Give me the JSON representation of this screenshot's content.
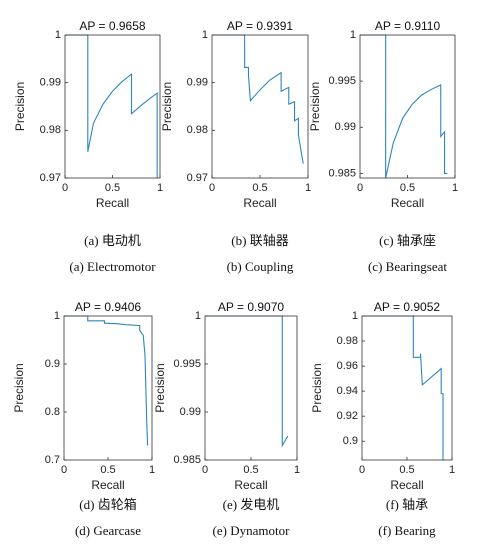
{
  "chart_data": [
    {
      "type": "line",
      "title": "AP = 0.9658",
      "xlabel": "Recall",
      "ylabel": "Precision",
      "caption_cn": "(a)  电动机",
      "caption_en": "(a) Electromotor",
      "color": "#2f86b8",
      "x": [
        0,
        0.24,
        0.24,
        0.3,
        0.4,
        0.5,
        0.6,
        0.7,
        0.7,
        0.8,
        0.9,
        0.97,
        0.97
      ],
      "values": [
        1,
        1,
        0.9755,
        0.9815,
        0.9855,
        0.9882,
        0.9902,
        0.9918,
        0.9835,
        0.9852,
        0.9868,
        0.9878,
        0.97
      ],
      "xlim": [
        0,
        1
      ],
      "ylim": [
        0.97,
        1
      ],
      "xticks": [
        0,
        0.5,
        1
      ],
      "yticks": [
        0.97,
        0.98,
        0.99,
        1
      ]
    },
    {
      "type": "line",
      "title": "AP = 0.9391",
      "xlabel": "Recall",
      "ylabel": "Precision",
      "caption_cn": "(b)  联轴器",
      "caption_en": "(b) Coupling",
      "color": "#2f86b8",
      "x": [
        0,
        0.34,
        0.34,
        0.38,
        0.38,
        0.4,
        0.5,
        0.6,
        0.72,
        0.72,
        0.8,
        0.8,
        0.86,
        0.86,
        0.9,
        0.9,
        0.95
      ],
      "values": [
        1,
        1,
        0.9932,
        0.9932,
        0.9915,
        0.9862,
        0.9885,
        0.9905,
        0.9921,
        0.9882,
        0.989,
        0.9855,
        0.986,
        0.982,
        0.9825,
        0.979,
        0.973
      ],
      "xlim": [
        0,
        1
      ],
      "ylim": [
        0.97,
        1
      ],
      "xticks": [
        0,
        0.5,
        1
      ],
      "yticks": [
        0.97,
        0.98,
        0.99,
        1
      ]
    },
    {
      "type": "line",
      "title": "AP = 0.9110",
      "xlabel": "Recall",
      "ylabel": "Precision",
      "caption_cn": "(c)  轴承座",
      "caption_en": "(c) Bearingseat",
      "color": "#2f86b8",
      "x": [
        0,
        0.27,
        0.27,
        0.35,
        0.45,
        0.55,
        0.65,
        0.75,
        0.85,
        0.85,
        0.89,
        0.89,
        0.92
      ],
      "values": [
        1,
        1,
        0.9845,
        0.9883,
        0.991,
        0.9925,
        0.9935,
        0.9941,
        0.9946,
        0.989,
        0.9895,
        0.985,
        0.985
      ],
      "xlim": [
        0,
        1
      ],
      "ylim": [
        0.9845,
        1
      ],
      "xticks": [
        0,
        0.5,
        1
      ],
      "yticks": [
        0.985,
        0.99,
        0.995,
        1
      ]
    },
    {
      "type": "line",
      "title": "AP = 0.9406",
      "xlabel": "Recall",
      "ylabel": "Precision",
      "caption_cn": "(d)  齿轮箱",
      "caption_en": "(d) Gearcase",
      "color": "#2f86b8",
      "x": [
        0,
        0.27,
        0.27,
        0.46,
        0.46,
        0.6,
        0.7,
        0.86,
        0.86,
        0.9,
        0.92,
        0.93,
        0.94,
        0.95
      ],
      "values": [
        1,
        1,
        0.99,
        0.99,
        0.985,
        0.984,
        0.982,
        0.98,
        0.97,
        0.96,
        0.92,
        0.85,
        0.78,
        0.73
      ],
      "xlim": [
        0,
        1
      ],
      "ylim": [
        0.7,
        1
      ],
      "xticks": [
        0,
        0.5,
        1
      ],
      "yticks": [
        0.7,
        0.8,
        0.9,
        1
      ]
    },
    {
      "type": "line",
      "title": "AP = 0.9070",
      "xlabel": "Recall",
      "ylabel": "Precision",
      "caption_cn": "(e)  发电机",
      "caption_en": "(e) Dynamotor",
      "color": "#2f86b8",
      "x": [
        0,
        0.84,
        0.84,
        0.9
      ],
      "values": [
        1,
        1,
        0.9865,
        0.9875
      ],
      "xlim": [
        0,
        1
      ],
      "ylim": [
        0.985,
        1
      ],
      "xticks": [
        0,
        0.5,
        1
      ],
      "yticks": [
        0.985,
        0.99,
        0.995,
        1
      ]
    },
    {
      "type": "line",
      "title": "AP = 0.9052",
      "xlabel": "Recall",
      "ylabel": "Precision",
      "caption_cn": "(f)  轴承",
      "caption_en": "(f) Bearing",
      "color": "#2f86b8",
      "x": [
        0,
        0.57,
        0.57,
        0.65,
        0.65,
        0.67,
        0.88,
        0.88,
        0.9,
        0.9,
        0.92
      ],
      "values": [
        1,
        1,
        0.967,
        0.967,
        0.97,
        0.945,
        0.958,
        0.938,
        0.938,
        0.885,
        0.885
      ],
      "xlim": [
        0,
        1
      ],
      "ylim": [
        0.885,
        1
      ],
      "xticks": [
        0,
        0.5,
        1
      ],
      "yticks": [
        0.9,
        0.92,
        0.94,
        0.96,
        0.98,
        1
      ]
    }
  ]
}
